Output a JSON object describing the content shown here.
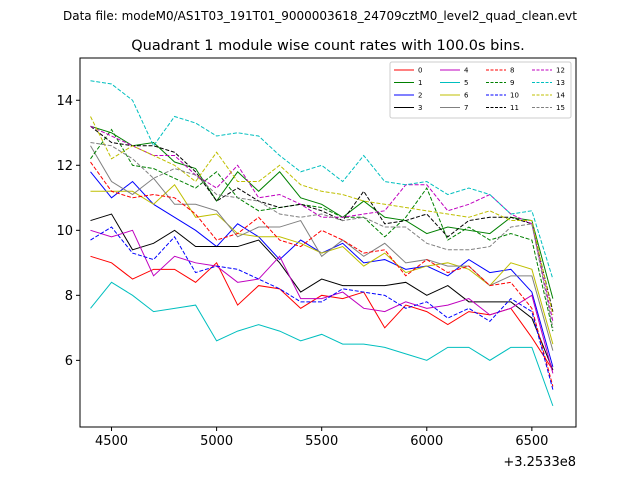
{
  "suptitle": "Data file: modeM0/AS1T03_191T01_9000003618_24709cztM0_level2_quad_clean.evt",
  "chart_data": {
    "type": "line",
    "title": "Quadrant 1 module wise count rates with 100.0s bins.",
    "xlabel": "",
    "ylabel": "",
    "x_offset_label": "+3.2533e8",
    "xlim": [
      4350,
      6710
    ],
    "ylim": [
      3.95,
      15.3
    ],
    "xticks": [
      4500,
      5000,
      5500,
      6000,
      6500
    ],
    "yticks": [
      6,
      8,
      10,
      12,
      14
    ],
    "legend_position": "top-right",
    "x": [
      4400,
      4500,
      4600,
      4700,
      4800,
      4900,
      5000,
      5100,
      5200,
      5300,
      5400,
      5500,
      5600,
      5700,
      5800,
      5900,
      6000,
      6100,
      6200,
      6300,
      6400,
      6500,
      6600
    ],
    "series": [
      {
        "name": "0",
        "color": "#ff0000",
        "dash": "solid",
        "values": [
          9.2,
          9.0,
          8.5,
          8.8,
          8.8,
          8.4,
          9.0,
          7.7,
          8.3,
          8.2,
          7.6,
          8.0,
          7.9,
          8.1,
          7.0,
          7.7,
          7.5,
          7.1,
          7.5,
          7.4,
          7.6,
          6.7,
          5.7
        ]
      },
      {
        "name": "1",
        "color": "#008000",
        "dash": "solid",
        "values": [
          13.2,
          13.0,
          12.6,
          12.7,
          12.1,
          11.9,
          10.9,
          11.8,
          11.2,
          11.8,
          11.0,
          10.8,
          10.4,
          10.9,
          10.4,
          10.3,
          9.9,
          10.1,
          10.0,
          9.9,
          10.4,
          10.3,
          7.9
        ]
      },
      {
        "name": "2",
        "color": "#0000ff",
        "dash": "solid",
        "values": [
          11.8,
          11.0,
          11.5,
          10.8,
          10.4,
          10.0,
          9.5,
          10.2,
          9.8,
          9.1,
          9.7,
          9.3,
          9.6,
          9.0,
          9.1,
          8.8,
          8.9,
          8.6,
          9.1,
          8.7,
          8.8,
          8.1,
          5.8
        ]
      },
      {
        "name": "3",
        "color": "#000000",
        "dash": "solid",
        "values": [
          10.3,
          10.5,
          9.4,
          9.6,
          10.0,
          9.5,
          9.5,
          9.5,
          9.7,
          9.0,
          8.1,
          8.5,
          8.3,
          8.3,
          8.3,
          8.4,
          8.0,
          8.3,
          7.8,
          7.8,
          7.8,
          7.3,
          5.7
        ]
      },
      {
        "name": "4",
        "color": "#bf00bf",
        "dash": "solid",
        "values": [
          10.0,
          9.8,
          10.0,
          8.6,
          9.2,
          9.0,
          8.9,
          8.4,
          8.5,
          9.2,
          7.9,
          7.9,
          8.1,
          7.6,
          7.5,
          7.8,
          7.6,
          7.7,
          7.9,
          7.4,
          7.6,
          8.0,
          5.6
        ]
      },
      {
        "name": "5",
        "color": "#00bfbf",
        "dash": "solid",
        "values": [
          7.6,
          8.4,
          8.0,
          7.5,
          7.6,
          7.7,
          6.6,
          6.9,
          7.1,
          6.9,
          6.6,
          6.8,
          6.5,
          6.5,
          6.4,
          6.2,
          6.0,
          6.4,
          6.4,
          6.0,
          6.4,
          6.4,
          4.6
        ]
      },
      {
        "name": "6",
        "color": "#bfbf00",
        "dash": "solid",
        "values": [
          11.2,
          11.2,
          11.2,
          10.8,
          11.4,
          10.4,
          10.5,
          9.9,
          9.8,
          9.8,
          9.6,
          9.3,
          9.5,
          8.9,
          9.3,
          8.7,
          8.9,
          9.0,
          8.8,
          8.3,
          9.0,
          8.8,
          6.5
        ]
      },
      {
        "name": "7",
        "color": "#808080",
        "dash": "solid",
        "values": [
          12.6,
          11.5,
          11.1,
          11.6,
          10.8,
          10.8,
          10.6,
          9.8,
          10.1,
          10.1,
          10.3,
          9.2,
          9.7,
          9.2,
          9.6,
          9.0,
          9.1,
          8.9,
          8.9,
          8.3,
          8.6,
          8.6,
          6.3
        ]
      },
      {
        "name": "8",
        "color": "#ff0000",
        "dash": "dashed",
        "values": [
          12.1,
          11.2,
          11.0,
          11.1,
          11.0,
          10.5,
          9.7,
          9.9,
          10.4,
          9.7,
          9.5,
          10.0,
          9.7,
          9.3,
          9.4,
          8.6,
          9.1,
          8.7,
          8.9,
          8.3,
          8.4,
          7.6,
          5.2
        ]
      },
      {
        "name": "9",
        "color": "#008000",
        "dash": "dashed",
        "values": [
          12.2,
          13.1,
          12.0,
          11.9,
          11.6,
          11.3,
          11.8,
          11.0,
          10.6,
          10.7,
          10.8,
          10.7,
          10.4,
          10.4,
          9.8,
          10.4,
          11.3,
          9.7,
          10.1,
          9.7,
          9.9,
          9.7,
          6.9
        ]
      },
      {
        "name": "10",
        "color": "#0000ff",
        "dash": "dashed",
        "values": [
          9.7,
          10.1,
          9.3,
          9.1,
          9.8,
          8.7,
          8.9,
          8.8,
          8.5,
          8.2,
          7.8,
          7.8,
          8.2,
          8.1,
          8.0,
          7.6,
          7.8,
          7.3,
          7.6,
          7.2,
          7.9,
          7.5,
          5.1
        ]
      },
      {
        "name": "11",
        "color": "#000000",
        "dash": "dashed",
        "values": [
          13.2,
          12.7,
          12.6,
          12.6,
          12.4,
          11.8,
          10.9,
          11.3,
          10.9,
          10.7,
          10.8,
          10.6,
          10.3,
          11.2,
          10.2,
          10.3,
          10.5,
          9.8,
          10.3,
          10.4,
          10.4,
          10.2,
          7.5
        ]
      },
      {
        "name": "12",
        "color": "#bf00bf",
        "dash": "dashed",
        "values": [
          13.2,
          12.9,
          12.6,
          12.3,
          12.3,
          11.7,
          11.3,
          12.0,
          11.0,
          11.1,
          10.8,
          10.4,
          10.4,
          10.5,
          10.6,
          11.4,
          11.4,
          10.6,
          10.8,
          11.1,
          10.5,
          10.2,
          7.2
        ]
      },
      {
        "name": "13",
        "color": "#00bfbf",
        "dash": "dashed",
        "values": [
          14.6,
          14.5,
          14.0,
          12.6,
          13.5,
          13.3,
          12.9,
          13.0,
          12.9,
          12.3,
          11.8,
          12.0,
          11.5,
          12.3,
          11.5,
          11.4,
          11.5,
          11.1,
          11.3,
          11.1,
          10.5,
          10.6,
          8.5
        ]
      },
      {
        "name": "14",
        "color": "#bfbf00",
        "dash": "dashed",
        "values": [
          13.5,
          12.2,
          12.6,
          12.3,
          12.0,
          11.5,
          12.4,
          11.5,
          11.5,
          12.0,
          11.4,
          11.2,
          11.1,
          10.9,
          10.8,
          10.7,
          10.6,
          10.5,
          10.4,
          10.6,
          10.3,
          10.3,
          7.4
        ]
      },
      {
        "name": "15",
        "color": "#808080",
        "dash": "dashed",
        "values": [
          12.7,
          12.6,
          12.2,
          11.6,
          11.9,
          11.7,
          11.1,
          11.0,
          10.9,
          10.5,
          10.4,
          10.5,
          10.3,
          10.4,
          10.1,
          10.1,
          9.6,
          9.4,
          9.4,
          9.5,
          10.1,
          10.2,
          7.0
        ]
      }
    ]
  }
}
